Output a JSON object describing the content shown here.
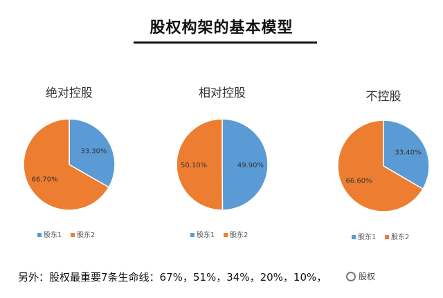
{
  "header": {
    "title": "股权构架的基本模型"
  },
  "chart_data": [
    {
      "type": "pie",
      "title": "绝对控股",
      "categories": [
        "股东1",
        "股东2"
      ],
      "values": [
        33.3,
        66.7
      ],
      "labels": [
        "33.30%",
        "66.70%"
      ],
      "colors": [
        "#5B9BD5",
        "#ED7D31"
      ],
      "legend": "bottom"
    },
    {
      "type": "pie",
      "title": "相对控股",
      "categories": [
        "股东1",
        "股东2"
      ],
      "values": [
        49.9,
        50.1
      ],
      "labels": [
        "49.90%",
        "50.10%"
      ],
      "colors": [
        "#5B9BD5",
        "#ED7D31"
      ],
      "legend": "bottom"
    },
    {
      "type": "pie",
      "title": "不控股",
      "categories": [
        "股东1",
        "股东2"
      ],
      "values": [
        33.4,
        66.6
      ],
      "labels": [
        "33.40%",
        "66.60%"
      ],
      "colors": [
        "#5B9BD5",
        "#ED7D31"
      ],
      "legend": "bottom"
    }
  ],
  "footer": {
    "text": "另外：股权最重要7条生命线：67%，51%，34%，20%，10%，"
  },
  "watermark": {
    "text": "股权"
  }
}
